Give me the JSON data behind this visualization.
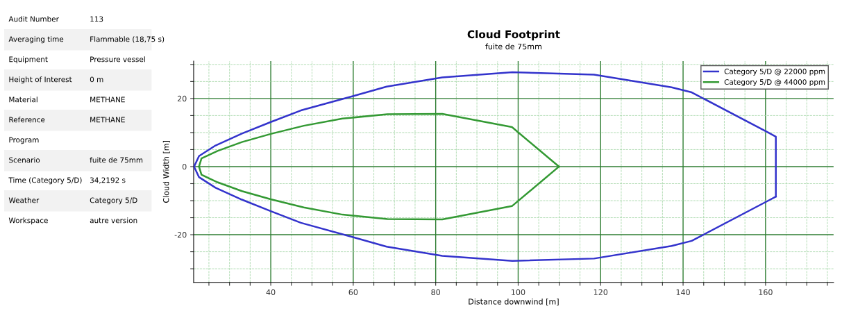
{
  "chart_data": [
    {
      "type": "other",
      "categories": [
        "Audit Number",
        "Averaging time",
        "Equipment",
        "Height of Interest",
        "Material",
        "Reference",
        "Program",
        "Scenario",
        "Time (Category 5/D)",
        "Weather",
        "Workspace"
      ],
      "value_labels": [
        "113",
        "Flammable (18,75 s)",
        "Pressure vessel",
        "0 m",
        "METHANE",
        "METHANE",
        null,
        "fuite de 75mm",
        "34,2192 s",
        "Category 5/D",
        "autre version"
      ]
    },
    {
      "type": "line",
      "title": "Cloud Footprint",
      "subtitle": "fuite de 75mm",
      "xlabel": "Distance downwind [m]",
      "ylabel": "Cloud Width [m]",
      "xlim": [
        21.3,
        176.5
      ],
      "ylim": [
        -34,
        31
      ],
      "xticks": [
        {
          "value": 25,
          "label": null
        },
        {
          "value": 30,
          "label": null
        },
        {
          "value": 35,
          "label": null
        },
        40,
        {
          "value": 45,
          "label": null
        },
        {
          "value": 50,
          "label": null
        },
        {
          "value": 55,
          "label": null
        },
        60,
        {
          "value": 65,
          "label": null
        },
        {
          "value": 70,
          "label": null
        },
        {
          "value": 75,
          "label": null
        },
        80,
        {
          "value": 85,
          "label": null
        },
        {
          "value": 90,
          "label": null
        },
        {
          "value": 95,
          "label": null
        },
        100,
        {
          "value": 105,
          "label": null
        },
        {
          "value": 110,
          "label": null
        },
        {
          "value": 115,
          "label": null
        },
        120,
        {
          "value": 125,
          "label": null
        },
        {
          "value": 130,
          "label": null
        },
        {
          "value": 135,
          "label": null
        },
        140,
        {
          "value": 145,
          "label": null
        },
        {
          "value": 150,
          "label": null
        },
        {
          "value": 155,
          "label": null
        },
        160,
        {
          "value": 165,
          "label": null
        },
        {
          "value": 170,
          "label": null
        },
        {
          "value": 175,
          "label": null
        }
      ],
      "yticks": [
        {
          "value": -30,
          "label": null
        },
        {
          "value": -25,
          "label": null
        },
        -20,
        {
          "value": -15,
          "label": null
        },
        {
          "value": -10,
          "label": null
        },
        {
          "value": -5,
          "label": null
        },
        0,
        {
          "value": 5,
          "label": null
        },
        {
          "value": 10,
          "label": null
        },
        {
          "value": 15,
          "label": null
        },
        20,
        {
          "value": 25,
          "label": null
        },
        {
          "value": 30,
          "label": null
        }
      ],
      "grid": true,
      "legend": "top right",
      "marker": "none",
      "line_style": "solid",
      "series": [
        {
          "name": "Category 5/D @ 22000 ppm",
          "color": "#3333cc",
          "x": [
            21.4,
            22.6,
            26.6,
            33,
            40,
            47.3,
            59.9,
            68.1,
            81.6,
            98.6,
            118.4,
            137.2,
            142.1,
            160.5,
            162.5,
            162.5
          ],
          "values": [
            0,
            3.1,
            6.2,
            9.7,
            13.1,
            16.5,
            20.7,
            23.5,
            26.2,
            27.7,
            27.0,
            23.3,
            21.8,
            10.1,
            8.8,
            -8.8
          ]
        },
        {
          "color": "#3333cc",
          "x": [
            21.4,
            22.6,
            26.6,
            33,
            40,
            47.3,
            59.9,
            68.1,
            81.6,
            98.6,
            118.4,
            137.2,
            142.1,
            160.5,
            162.5
          ],
          "values": [
            0,
            -3.1,
            -6.2,
            -9.7,
            -13.1,
            -16.5,
            -20.7,
            -23.5,
            -26.2,
            -27.7,
            -27.0,
            -23.3,
            -21.8,
            -10.1,
            -8.8
          ]
        },
        {
          "name": "Category 5/D @ 44000 ppm",
          "color": "#339933",
          "x": [
            22.6,
            23.2,
            27.1,
            33,
            40,
            48,
            57.4,
            68.3,
            81.6,
            98.5,
            109.9
          ],
          "values": [
            0,
            2.4,
            4.6,
            7.2,
            9.6,
            12,
            14.1,
            15.4,
            15.5,
            11.6,
            0
          ]
        },
        {
          "color": "#339933",
          "x": [
            22.6,
            23.2,
            27.1,
            33,
            40,
            48,
            57.4,
            68.3,
            81.6,
            98.5,
            109.9
          ],
          "values": [
            0,
            -2.4,
            -4.6,
            -7.2,
            -9.6,
            -12,
            -14.1,
            -15.4,
            -15.5,
            -11.6,
            0
          ]
        }
      ]
    }
  ]
}
